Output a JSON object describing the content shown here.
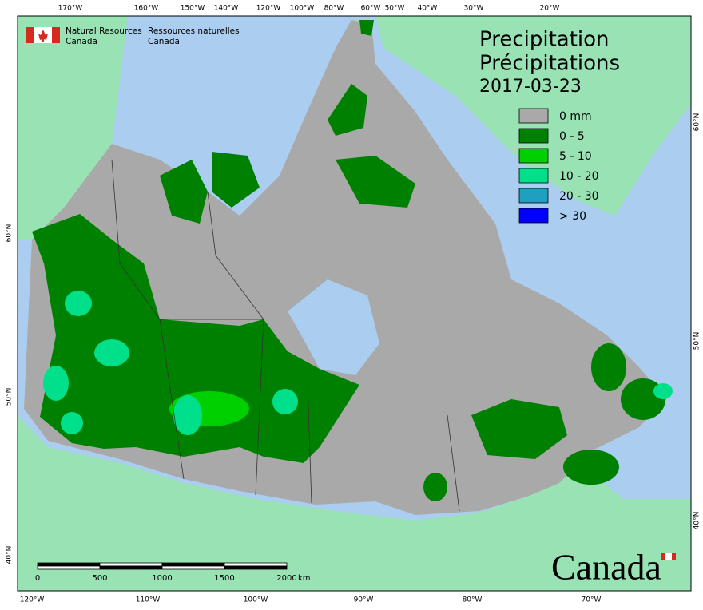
{
  "header": {
    "agency_en": [
      "Natural Resources",
      "Canada"
    ],
    "agency_fr": [
      "Ressources naturelles",
      "Canada"
    ]
  },
  "title": [
    "Precipitation",
    "Précipitations"
  ],
  "date": "2017-03-23",
  "legend": [
    {
      "label": "0 mm",
      "color": "#a9a9a9"
    },
    {
      "label": "0 - 5",
      "color": "#008000"
    },
    {
      "label": "5 - 10",
      "color": "#00d000"
    },
    {
      "label": "10 - 20",
      "color": "#00e08a"
    },
    {
      "label": "20 - 30",
      "color": "#20a0c0"
    },
    {
      "label": "> 30",
      "color": "#0000ff"
    }
  ],
  "top_labels": [
    "170°W",
    "160°W",
    "150°W",
    "140°W",
    "120°W",
    "100°W",
    "80°W",
    "60°W",
    "50°W",
    "40°W",
    "30°W",
    "20°W"
  ],
  "bottom_labels": [
    "120°W",
    "110°W",
    "100°W",
    "90°W",
    "80°W",
    "70°W"
  ],
  "left_labels": [
    "60°N",
    "50°N",
    "40°N"
  ],
  "right_labels": [
    "60°N",
    "50°N",
    "40°N"
  ],
  "scale_bar": {
    "ticks": [
      "0",
      "500",
      "1000",
      "1500",
      "2000"
    ],
    "unit": "km"
  },
  "wordmark": "Canada"
}
